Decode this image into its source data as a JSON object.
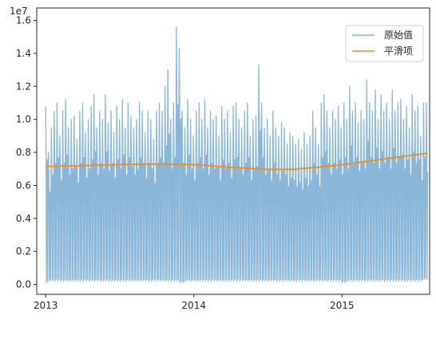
{
  "chart_data": {
    "type": "line",
    "title": "",
    "xlabel": "",
    "ylabel": "",
    "y_offset_text": "1e7",
    "xlim": [
      "2012-12-10",
      "2015-08-05"
    ],
    "ylim": [
      -0.06,
      1.675
    ],
    "x_ticks": [
      {
        "date": "2013-01-01",
        "label": "2013"
      },
      {
        "date": "2014-01-01",
        "label": "2014"
      },
      {
        "date": "2015-01-01",
        "label": "2015"
      }
    ],
    "y_ticks": [
      {
        "value": 0.0,
        "label": "0.0"
      },
      {
        "value": 0.2,
        "label": "0.2"
      },
      {
        "value": 0.4,
        "label": "0.4"
      },
      {
        "value": 0.6,
        "label": "0.6"
      },
      {
        "value": 0.8,
        "label": "0.8"
      },
      {
        "value": 1.0,
        "label": "1.0"
      },
      {
        "value": 1.2,
        "label": "1.2"
      },
      {
        "value": 1.4,
        "label": "1.4"
      },
      {
        "value": 1.6,
        "label": "1.6"
      }
    ],
    "grid": false,
    "legend_position": "top-right",
    "series": [
      {
        "name": "原始值",
        "color": "#8ab7d9",
        "pattern": "daily",
        "start": "2013-01-01",
        "end": "2015-07-31",
        "weekly_peaks": [
          1.08,
          0.8,
          0.95,
          1.05,
          1.1,
          0.9,
          1.05,
          1.12,
          0.95,
          1.0,
          1.02,
          0.88,
          1.05,
          1.1,
          0.92,
          1.0,
          1.08,
          1.15,
          0.95,
          1.05,
          1.0,
          1.15,
          0.98,
          1.05,
          0.92,
          1.08,
          1.0,
          1.12,
          0.95,
          1.1,
          1.02,
          0.95,
          1.0,
          1.1,
          1.05,
          0.92,
          1.05,
          1.0,
          0.88,
          1.05,
          1.1,
          1.05,
          1.2,
          1.3,
          1.0,
          1.1,
          1.56,
          1.43,
          1.05,
          0.95,
          1.12,
          1.0,
          0.9,
          1.05,
          1.1,
          1.0,
          1.12,
          0.95,
          1.05,
          1.0,
          1.02,
          0.9,
          1.08,
          1.0,
          1.05,
          0.92,
          1.08,
          1.1,
          1.0,
          0.95,
          1.05,
          1.1,
          0.9,
          1.0,
          1.02,
          1.33,
          1.1,
          0.95,
          1.0,
          0.9,
          1.05,
          0.95,
          0.9,
          0.98,
          0.95,
          0.85,
          0.92,
          0.9,
          0.85,
          0.88,
          0.82,
          0.92,
          0.85,
          0.9,
          1.05,
          0.95,
          0.85,
          1.1,
          1.15,
          1.05,
          0.95,
          1.05,
          1.0,
          1.08,
          0.95,
          1.1,
          1.0,
          1.2,
          1.05,
          1.1,
          0.98,
          1.05,
          1.0,
          1.24,
          1.1,
          1.05,
          1.18,
          1.0,
          1.15,
          1.05,
          1.1,
          1.0,
          1.18,
          1.05,
          1.1,
          1.12,
          1.0,
          1.08,
          0.95,
          1.15,
          1.05,
          1.08,
          0.9,
          1.1
        ],
        "weekly_lows": [
          0.01,
          0.02,
          0.02,
          0.02,
          0.02,
          0.02,
          0.02,
          0.02,
          0.02,
          0.02,
          0.02,
          0.02,
          0.02,
          0.02,
          0.02,
          0.02,
          0.02,
          0.02,
          0.02,
          0.02,
          0.02,
          0.02,
          0.02,
          0.02,
          0.02,
          0.02,
          0.02,
          0.02,
          0.02,
          0.02,
          0.02,
          0.02,
          0.02,
          0.02,
          0.02,
          0.02,
          0.02,
          0.02,
          0.02,
          0.02,
          0.02,
          0.02,
          0.02,
          0.02,
          0.02,
          0.02,
          0.02,
          0.01,
          0.01,
          0.02,
          0.02,
          0.02,
          0.02,
          0.02,
          0.02,
          0.02,
          0.02,
          0.02,
          0.02,
          0.02,
          0.02,
          0.02,
          0.02,
          0.02,
          0.02,
          0.02,
          0.02,
          0.02,
          0.02,
          0.02,
          0.02,
          0.02,
          0.02,
          0.02,
          0.02,
          0.02,
          0.02,
          0.02,
          0.02,
          0.02,
          0.02,
          0.02,
          0.02,
          0.02,
          0.02,
          0.02,
          0.02,
          0.02,
          0.02,
          0.02,
          0.02,
          0.02,
          0.02,
          0.02,
          0.02,
          0.02,
          0.02,
          0.02,
          0.02,
          0.02,
          0.02,
          0.02,
          0.02,
          0.02,
          0.01,
          0.01,
          0.02,
          0.02,
          0.02,
          0.02,
          0.02,
          0.02,
          0.02,
          0.02,
          0.02,
          0.02,
          0.02,
          0.02,
          0.02,
          0.02,
          0.02,
          0.02,
          0.02,
          0.02,
          0.02,
          0.02,
          0.02,
          0.02,
          0.02,
          0.02,
          0.02,
          0.02,
          0.02,
          0.03
        ]
      },
      {
        "name": "平滑项",
        "color": "#f28a1e",
        "points": [
          {
            "x": "2013-01-01",
            "y": 0.714
          },
          {
            "x": "2013-04-01",
            "y": 0.72
          },
          {
            "x": "2013-07-01",
            "y": 0.726
          },
          {
            "x": "2013-10-01",
            "y": 0.73
          },
          {
            "x": "2014-01-01",
            "y": 0.726
          },
          {
            "x": "2014-04-01",
            "y": 0.71
          },
          {
            "x": "2014-07-01",
            "y": 0.697
          },
          {
            "x": "2014-09-01",
            "y": 0.697
          },
          {
            "x": "2014-11-01",
            "y": 0.71
          },
          {
            "x": "2015-01-01",
            "y": 0.725
          },
          {
            "x": "2015-03-01",
            "y": 0.745
          },
          {
            "x": "2015-05-01",
            "y": 0.765
          },
          {
            "x": "2015-07-31",
            "y": 0.795
          }
        ]
      }
    ]
  }
}
